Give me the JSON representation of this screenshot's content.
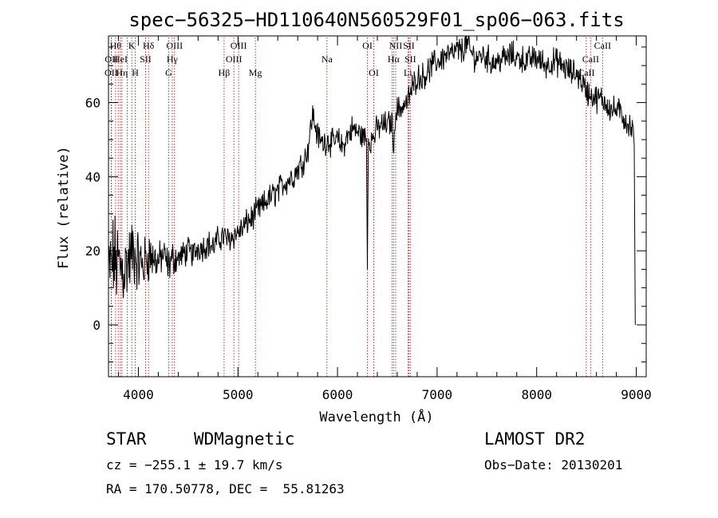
{
  "chart_data": {
    "type": "line",
    "title": "spec−56325−HD110640N560529F01_sp06−063.fits",
    "xlabel": "Wavelength (Å)",
    "ylabel": "Flux (relative)",
    "xlim": [
      3700,
      9100
    ],
    "ylim": [
      -14,
      78
    ],
    "xticks": [
      4000,
      5000,
      6000,
      7000,
      8000,
      9000
    ],
    "yticks": [
      0,
      20,
      40,
      60
    ],
    "grid": false,
    "series": [
      {
        "x": [
          3700,
          3750,
          3800,
          3850,
          3900,
          3950,
          4000,
          4050,
          4100,
          4150,
          4200,
          4250,
          4300,
          4350,
          4400,
          4450,
          4500,
          4550,
          4600,
          4650,
          4700,
          4750,
          4800,
          4850,
          4900,
          4950,
          5000,
          5050,
          5100,
          5150,
          5200,
          5250,
          5300,
          5350,
          5400,
          5450,
          5500,
          5550,
          5600,
          5650,
          5700,
          5750,
          5800,
          5850,
          5900,
          5950,
          6000,
          6050,
          6100,
          6150,
          6200,
          6250,
          6300,
          6350,
          6400,
          6450,
          6500,
          6550,
          6600,
          6650,
          6700,
          6750,
          6800,
          6850,
          6900,
          6950,
          7000,
          7050,
          7100,
          7150,
          7200,
          7250,
          7300,
          7350,
          7400,
          7450,
          7500,
          7550,
          7600,
          7650,
          7700,
          7750,
          7800,
          7850,
          7900,
          7950,
          8000,
          8050,
          8100,
          8150,
          8200,
          8250,
          8300,
          8350,
          8400,
          8450,
          8500,
          8550,
          8600,
          8650,
          8700,
          8750,
          8800,
          8850,
          8900,
          8950,
          8990
        ],
        "y": [
          14,
          18,
          16,
          15,
          17,
          20,
          17,
          16,
          19,
          18,
          17,
          19,
          16,
          18,
          18,
          19,
          20,
          19,
          21,
          21,
          22,
          21,
          23,
          24,
          23,
          24,
          25,
          26,
          28,
          29,
          31,
          32,
          34,
          35,
          36,
          38,
          39,
          40,
          42,
          44,
          47,
          57,
          51,
          49,
          50,
          49,
          50,
          48,
          51,
          53,
          52,
          51,
          50,
          50,
          53,
          54,
          54,
          55,
          58,
          59,
          60,
          64,
          67,
          67,
          68,
          70,
          71,
          72,
          73,
          73,
          74,
          74,
          76,
          73,
          72,
          73,
          72,
          71,
          71,
          72,
          72,
          73,
          72,
          72,
          71,
          72,
          72,
          71,
          70,
          71,
          71,
          70,
          69,
          68,
          68,
          66,
          63,
          62,
          61,
          61,
          60,
          58,
          58,
          57,
          55,
          53,
          50
        ],
        "noise": [
          9,
          10,
          10,
          9,
          8,
          8,
          7,
          6,
          6,
          5,
          4,
          4,
          4,
          4,
          3,
          3,
          3,
          3,
          3,
          3,
          3,
          3,
          3,
          3,
          3,
          3,
          3,
          3,
          3,
          3,
          3,
          3,
          3,
          3,
          3,
          3,
          3,
          3,
          3,
          3,
          3,
          3,
          3,
          3,
          3,
          3,
          3,
          3,
          3,
          3,
          3,
          3,
          3,
          3,
          3,
          3,
          3,
          3,
          3,
          3,
          3,
          3,
          3,
          3,
          3,
          3,
          3,
          3,
          3,
          3,
          3,
          3,
          3,
          3,
          3,
          3,
          3,
          3,
          3,
          3,
          3,
          3,
          3,
          3,
          3,
          3,
          3,
          3,
          3,
          3,
          3,
          3,
          3,
          3,
          3,
          3,
          3,
          3,
          3,
          3,
          3,
          3,
          3,
          3,
          3,
          3,
          3
        ]
      }
    ],
    "features": [
      {
        "x": 6300,
        "y": 15
      },
      {
        "x": 6563,
        "y": 43
      },
      {
        "x": 8990,
        "y": 0
      }
    ],
    "lines": [
      {
        "w": 3727,
        "label": "OII",
        "row": 2
      },
      {
        "w": 3730,
        "label": "OII",
        "row": 1
      },
      {
        "w": 3771,
        "label": "Hθ",
        "row": 0
      },
      {
        "w": 3798,
        "label": "",
        "row": 0
      },
      {
        "w": 3820,
        "label": "HeI",
        "row": 1
      },
      {
        "w": 3835,
        "label": "Hη",
        "row": 2
      },
      {
        "w": 3889,
        "label": "",
        "row": 0
      },
      {
        "w": 3934,
        "label": "K",
        "row": 0
      },
      {
        "w": 3969,
        "label": "H",
        "row": 2
      },
      {
        "w": 4072,
        "label": "SII",
        "row": 1
      },
      {
        "w": 4102,
        "label": "Hδ",
        "row": 0
      },
      {
        "w": 4305,
        "label": "G",
        "row": 2
      },
      {
        "w": 4340,
        "label": "Hγ",
        "row": 1
      },
      {
        "w": 4363,
        "label": "OIII",
        "row": 0
      },
      {
        "w": 4861,
        "label": "Hβ",
        "row": 2
      },
      {
        "w": 4959,
        "label": "OIII",
        "row": 1
      },
      {
        "w": 5007,
        "label": "OIII",
        "row": 0
      },
      {
        "w": 5175,
        "label": "Mg",
        "row": 2
      },
      {
        "w": 5894,
        "label": "Na",
        "row": 1
      },
      {
        "w": 6300,
        "label": "OI",
        "row": 0
      },
      {
        "w": 6364,
        "label": "OI",
        "row": 2
      },
      {
        "w": 6548,
        "label": "",
        "row": 0
      },
      {
        "w": 6563,
        "label": "Hα",
        "row": 1
      },
      {
        "w": 6584,
        "label": "NII",
        "row": 0
      },
      {
        "w": 6707,
        "label": "Li",
        "row": 2
      },
      {
        "w": 6716,
        "label": "SII",
        "row": 0
      },
      {
        "w": 6731,
        "label": "SII",
        "row": 1
      },
      {
        "w": 8498,
        "label": "CaII",
        "row": 2
      },
      {
        "w": 8542,
        "label": "CaII",
        "row": 1
      },
      {
        "w": 8662,
        "label": "CaII",
        "row": 0
      }
    ]
  },
  "info": {
    "object_class": "STAR",
    "subclass": "WDMagnetic",
    "survey": "LAMOST DR2",
    "cz": "cz = −255.1 ± 19.7 km/s",
    "obs_date": "Obs−Date: 20130201",
    "radec": "RA = 170.50778, DEC =  55.81263"
  },
  "colors": {
    "spectrum": "#000000",
    "line_markers": "#b22222",
    "background": "#ffffff"
  }
}
